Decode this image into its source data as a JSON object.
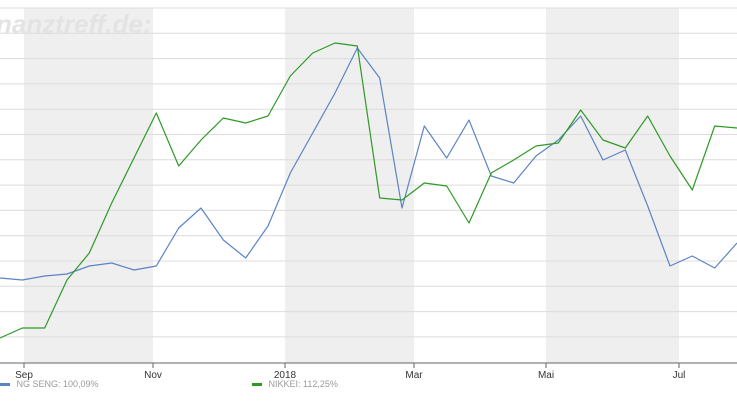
{
  "watermark": "nanztreff.de:",
  "chart_data": {
    "type": "line",
    "title": "",
    "xlabel": "",
    "ylabel": "",
    "grid": true,
    "x_ticks": [
      "Sep",
      "Nov",
      "2018",
      "Mar",
      "Mai",
      "Jul"
    ],
    "legend": [
      {
        "label": "NG SENG: 100,09%",
        "color": "#5b84c4"
      },
      {
        "label": "NIKKEI: 112,25%",
        "color": "#2e9a25"
      }
    ],
    "x": [
      "Aug 2017",
      "early Sep 2017",
      "mid Sep 2017",
      "late Sep 2017",
      "early Oct 2017",
      "mid Oct 2017",
      "late Oct 2017",
      "early Nov 2017",
      "mid Nov 2017",
      "late Nov 2017",
      "early Dec 2017",
      "mid Dec 2017",
      "late Dec 2017",
      "early Jan 2018",
      "mid Jan 2018",
      "late Jan 2018",
      "early Feb 2018",
      "mid Feb 2018",
      "late Feb 2018",
      "early Mar 2018",
      "mid Mar 2018",
      "late Mar 2018",
      "early Apr 2018",
      "mid Apr 2018",
      "late Apr 2018",
      "early May 2018",
      "mid May 2018",
      "late May 2018",
      "early Jun 2018",
      "mid Jun 2018",
      "late Jun 2018",
      "early Jul 2018",
      "mid Jul 2018",
      "late Jul 2018"
    ],
    "series": [
      {
        "name": "NG SENG: 100,09%",
        "color": "#5b84c4",
        "values": [
          270,
          272,
          268,
          266,
          258,
          255,
          262,
          258,
          220,
          200,
          232,
          250,
          218,
          165,
          125,
          85,
          40,
          70,
          200,
          118,
          150,
          112,
          168,
          175,
          148,
          132,
          108,
          152,
          142,
          198,
          258,
          248,
          260,
          235
        ]
      },
      {
        "name": "NIKKEI: 112,25%",
        "color": "#2e9a25",
        "values": [
          330,
          320,
          320,
          272,
          245,
          195,
          150,
          105,
          158,
          132,
          110,
          115,
          108,
          68,
          45,
          35,
          38,
          190,
          192,
          175,
          178,
          215,
          165,
          152,
          138,
          135,
          102,
          132,
          140,
          108,
          148,
          182,
          118,
          120
        ]
      }
    ]
  }
}
